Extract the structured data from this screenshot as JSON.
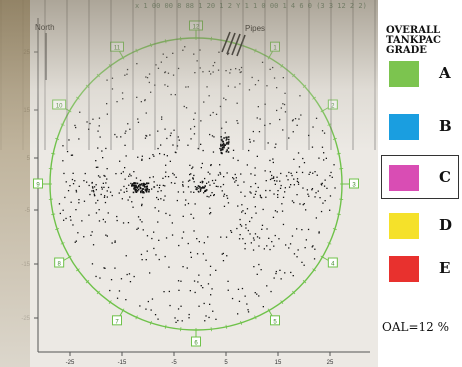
{
  "image": {
    "header_text": "x 1 00 00 8 88 1 20 1 2 Y 1 1 0 00 1 4 6 0 (3 3 12 2 2)"
  },
  "plot": {
    "north_label": "North",
    "pipes_label": "Pipes",
    "y_ticks": [
      "25",
      "15",
      "5",
      "-5",
      "-15",
      "-25"
    ],
    "x_ticks": [
      "-25",
      "-15",
      "-5",
      "5",
      "15",
      "25"
    ],
    "sensor_labels": [
      "12",
      "1",
      "2",
      "3",
      "4",
      "5",
      "6",
      "7",
      "8",
      "9",
      "10",
      "11"
    ],
    "ring_color": "#6fc24a",
    "dot_color": "#111111"
  },
  "legend": {
    "title_lines": [
      "OVERALL",
      "TANKPAC",
      "GRADE"
    ],
    "grades": [
      {
        "letter": "A",
        "color": "#7cc44f"
      },
      {
        "letter": "B",
        "color": "#1a9ee0"
      },
      {
        "letter": "C",
        "color": "#d94db4"
      },
      {
        "letter": "D",
        "color": "#f5e12a"
      },
      {
        "letter": "E",
        "color": "#e8312e"
      }
    ],
    "selected_grade": "C",
    "oal": "OAL=12 %"
  }
}
